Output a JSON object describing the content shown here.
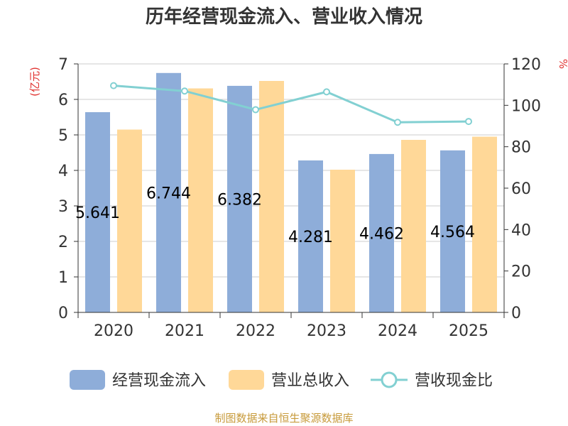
{
  "title": "历年经营现金流入、营业收入情况",
  "source": "制图数据来自恒生聚源数据库",
  "colors": {
    "cash_inflow": "#8eadd9",
    "revenue": "#ffd898",
    "ratio": "#82d0d2",
    "axis": "#333333",
    "grid": "#cccccc",
    "unit": "#e0312e",
    "source": "#c79a3a"
  },
  "chart_data": {
    "type": "bar",
    "title": "历年经营现金流入、营业收入情况",
    "categories": [
      "2020",
      "2021",
      "2022",
      "2023",
      "2024",
      "2025"
    ],
    "y_left": {
      "unit_label": "(亿元)",
      "lim": [
        0,
        7
      ],
      "ticks": [
        "0",
        "1",
        "2",
        "3",
        "4",
        "5",
        "6",
        "7"
      ]
    },
    "y_right": {
      "unit_label": "%",
      "lim": [
        0,
        120
      ],
      "ticks": [
        "0",
        "20",
        "40",
        "60",
        "80",
        "100",
        "120"
      ]
    },
    "grid": true,
    "legend_position": "bottom",
    "series": [
      {
        "name": "经营现金流入",
        "type": "bar",
        "axis": "left",
        "values": [
          5.641,
          6.744,
          6.382,
          4.281,
          4.462,
          4.564
        ],
        "labels": [
          "5.641",
          "6.744",
          "6.382",
          "4.281",
          "4.462",
          "4.564"
        ]
      },
      {
        "name": "营业总收入",
        "type": "bar",
        "axis": "left",
        "values": [
          5.15,
          6.31,
          6.52,
          4.02,
          4.86,
          4.95
        ]
      },
      {
        "name": "营收现金比",
        "type": "line",
        "axis": "right",
        "values": [
          109.5,
          106.9,
          97.9,
          106.5,
          91.8,
          92.2
        ]
      }
    ]
  }
}
